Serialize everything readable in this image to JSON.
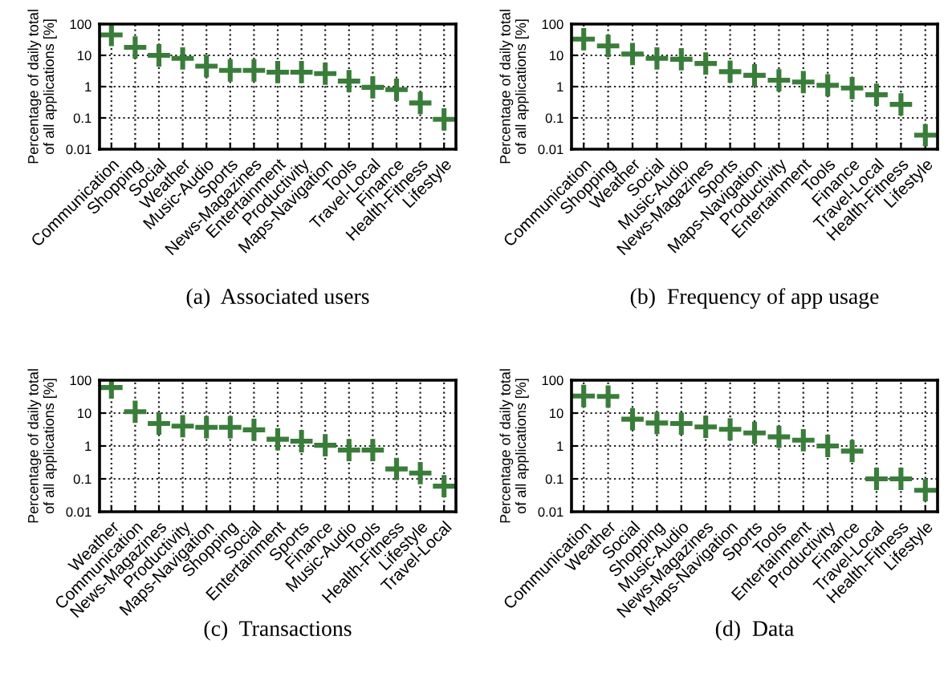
{
  "chart_data": [
    {
      "type": "scatter",
      "title": "(a)  Associated users",
      "ylabel": "Percentage of daily total\nof all applications [%]",
      "log": "y",
      "grid": true,
      "marker": "cross",
      "ylim": [
        0.01,
        100
      ],
      "yticks": [
        0.01,
        0.1,
        1,
        10,
        100
      ],
      "categories": [
        "Communication",
        "Shopping",
        "Social",
        "Weather",
        "Music-Audio",
        "Sports",
        "News-Magazines",
        "Entertainment",
        "Productivity",
        "Maps-Navigation",
        "Tools",
        "Travel-Local",
        "Finance",
        "Health-Fitness",
        "Lifestyle"
      ],
      "series": [
        {
          "color": "#3a7d3a",
          "values": [
            45,
            18,
            10,
            8,
            4.5,
            3.3,
            3.3,
            2.9,
            2.9,
            2.6,
            1.5,
            0.95,
            0.8,
            0.3,
            0.09
          ]
        }
      ]
    },
    {
      "type": "scatter",
      "title": "(b)  Frequency of app usage",
      "ylabel": "Percentage of daily total\nof all applications [%]",
      "log": "y",
      "grid": true,
      "marker": "cross",
      "ylim": [
        0.01,
        100
      ],
      "yticks": [
        0.01,
        0.1,
        1,
        10,
        100
      ],
      "categories": [
        "Communication",
        "Shopping",
        "Weather",
        "Social",
        "Music-Audio",
        "News-Magazines",
        "Sports",
        "Maps-Navigation",
        "Productivity",
        "Entertainment",
        "Tools",
        "Finance",
        "Travel-Local",
        "Health-Fitness",
        "Lifestyle"
      ],
      "series": [
        {
          "color": "#3a7d3a",
          "values": [
            33,
            20,
            11,
            8,
            7.5,
            5.5,
            3,
            2.3,
            1.6,
            1.4,
            1.1,
            0.9,
            0.55,
            0.27,
            0.028
          ]
        }
      ]
    },
    {
      "type": "scatter",
      "title": "(c)  Transactions",
      "ylabel": "Percentage of daily total\nof all applications [%]",
      "log": "y",
      "grid": true,
      "marker": "cross",
      "ylim": [
        0.01,
        100
      ],
      "yticks": [
        0.01,
        0.1,
        1,
        10,
        100
      ],
      "categories": [
        "Weather",
        "Communication",
        "News-Magazines",
        "Productivity",
        "Maps-Navigation",
        "Shopping",
        "Social",
        "Entertainment",
        "Sports",
        "Finance",
        "Music-Audio",
        "Tools",
        "Health-Fitness",
        "Lifestyle",
        "Travel-Local"
      ],
      "series": [
        {
          "color": "#3a7d3a",
          "values": [
            60,
            11,
            4.8,
            4,
            3.7,
            3.7,
            3.1,
            1.6,
            1.4,
            1.05,
            0.75,
            0.75,
            0.2,
            0.15,
            0.06
          ]
        }
      ]
    },
    {
      "type": "scatter",
      "title": "(d)  Data",
      "ylabel": "Percentage of daily total\nof all applications [%]",
      "log": "y",
      "grid": true,
      "marker": "cross",
      "ylim": [
        0.01,
        100
      ],
      "yticks": [
        0.01,
        0.1,
        1,
        10,
        100
      ],
      "categories": [
        "Communication",
        "Weather",
        "Social",
        "Shopping",
        "Music-Audio",
        "News-Magazines",
        "Maps-Navigation",
        "Sports",
        "Tools",
        "Entertainment",
        "Productivity",
        "Finance",
        "Travel-Local",
        "Health-Fitness",
        "Lifestyle"
      ],
      "series": [
        {
          "color": "#3a7d3a",
          "values": [
            33,
            32,
            6.5,
            5,
            4.8,
            3.8,
            3.2,
            2.5,
            1.9,
            1.5,
            1.0,
            0.7,
            0.1,
            0.1,
            0.045
          ]
        }
      ]
    }
  ]
}
